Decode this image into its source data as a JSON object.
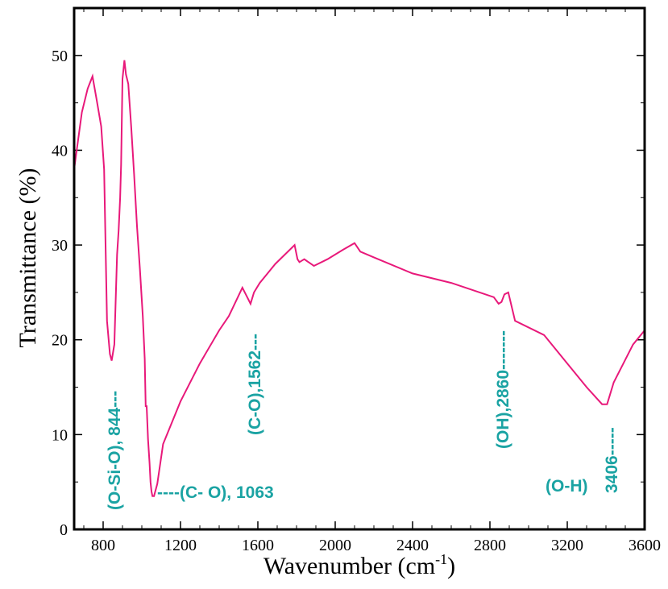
{
  "chart_data": {
    "type": "line",
    "title": "",
    "xlabel": "Wavenumber (cm",
    "xlabel_sup": "-1",
    "xlabel_close": ")",
    "ylabel": "Transmittance (%)",
    "xlim": [
      650,
      3600
    ],
    "ylim": [
      0,
      55
    ],
    "x_ticks": [
      800,
      1200,
      1600,
      2000,
      2400,
      2800,
      3200,
      3600
    ],
    "x_tick_labels": [
      "800",
      "1200",
      "1600",
      "2000",
      "2400",
      "2800",
      "3200",
      "3600"
    ],
    "y_ticks": [
      0,
      10,
      20,
      30,
      40,
      50
    ],
    "y_tick_labels": [
      "0",
      "10",
      "20",
      "30",
      "40",
      "50"
    ],
    "grid": false,
    "line_color": "#e8197a",
    "annotation_color": "#1aa3a3",
    "series": [
      {
        "x": [
          650,
          690,
          720,
          745,
          765,
          790,
          805,
          820,
          835,
          844,
          858,
          872,
          880,
          888,
          893,
          900,
          910,
          918,
          930,
          945,
          960,
          975,
          990,
          1005,
          1015,
          1020,
          1025,
          1032,
          1040,
          1045,
          1050,
          1055,
          1063,
          1080,
          1110,
          1200,
          1300,
          1400,
          1450,
          1520,
          1545,
          1562,
          1580,
          1610,
          1650,
          1690,
          1740,
          1790,
          1805,
          1815,
          1840,
          1890,
          1960,
          2040,
          2100,
          2130,
          2200,
          2400,
          2600,
          2820,
          2845,
          2860,
          2875,
          2895,
          2930,
          3080,
          3200,
          3300,
          3380,
          3406,
          3440,
          3540,
          3600
        ],
        "y": [
          38,
          44,
          46.5,
          47.8,
          45.5,
          42.5,
          38,
          22,
          18.5,
          17.8,
          19.5,
          29,
          31.5,
          35,
          38.5,
          47.5,
          49.5,
          48,
          47,
          42.5,
          37.5,
          32,
          27.5,
          22.5,
          18,
          13,
          13,
          9.5,
          7,
          5,
          4,
          3.5,
          3.5,
          4.8,
          9,
          13.5,
          17.5,
          21,
          22.5,
          25.5,
          24.5,
          23.8,
          25,
          26,
          27,
          28,
          29,
          30,
          28.5,
          28.2,
          28.5,
          27.8,
          28.5,
          29.5,
          30.2,
          29.3,
          28.7,
          27,
          26,
          24.5,
          23.8,
          24,
          24.8,
          25,
          22,
          20.5,
          17.5,
          15,
          13.2,
          13.2,
          15.5,
          19.5,
          21
        ]
      }
    ],
    "annotations": [
      {
        "text": "(O-Si-O), 844---",
        "orientation": "vertical"
      },
      {
        "text": "----(C- O), 1063",
        "orientation": "horizontal"
      },
      {
        "text": "(C-O),1562---",
        "orientation": "vertical"
      },
      {
        "text": "(OH),2860-------",
        "orientation": "vertical"
      },
      {
        "text": "(O-H)",
        "orientation": "horizontal"
      },
      {
        "text": "3406-----",
        "orientation": "vertical"
      }
    ]
  }
}
